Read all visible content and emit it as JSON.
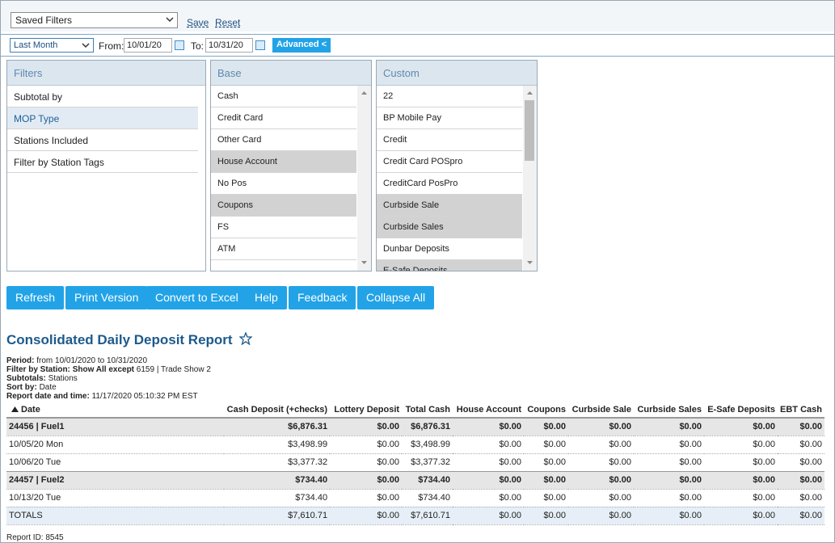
{
  "toolbar": {
    "saved_filters": "Saved Filters",
    "save": "Save",
    "reset": "Reset"
  },
  "date_range": {
    "period": "Last Month",
    "from_label": "From:",
    "from": "10/01/20",
    "to_label": "To:",
    "to": "10/31/20",
    "advanced": "Advanced <"
  },
  "panels": [
    {
      "title": "Filters",
      "items": [
        "Subtotal by",
        "MOP Type",
        "Stations Included",
        "Filter by Station Tags"
      ],
      "selected": [
        1
      ]
    },
    {
      "title": "Base",
      "items": [
        "Cash",
        "Credit Card",
        "Other Card",
        "House Account",
        "No Pos",
        "Coupons",
        "FS",
        "ATM"
      ],
      "selected": [
        3,
        5
      ]
    },
    {
      "title": "Custom",
      "items": [
        "22",
        "BP Mobile Pay",
        "Credit",
        "Credit Card POSpro",
        "CreditCard PosPro",
        "Curbside Sale",
        "Curbside Sales",
        "Dunbar Deposits",
        "E-Safe Deposits"
      ],
      "selected": [
        5,
        6,
        8
      ]
    }
  ],
  "buttons": [
    "Refresh",
    "Print Version",
    "Convert to Excel",
    "Help",
    "Feedback",
    "Collapse All"
  ],
  "report": {
    "title": "Consolidated Daily Deposit Report",
    "meta": [
      {
        "label": "Period:",
        "value": "from 10/01/2020 to 10/31/2020"
      },
      {
        "label": "Filter by Station:",
        "emphasis": "Show All except",
        "value": "6159 | Trade Show 2"
      },
      {
        "label": "Subtotals:",
        "value": "Stations"
      },
      {
        "label": "Sort by:",
        "value": "Date"
      },
      {
        "label": "Report date and time:",
        "value": "11/17/2020 05:10:32 PM EST"
      }
    ],
    "columns": [
      "Date",
      "Cash Deposit (+checks)",
      "Lottery Deposit",
      "Total Cash",
      "House Account",
      "Coupons",
      "Curbside Sale",
      "Curbside Sales",
      "E-Safe Deposits",
      "EBT Cash"
    ],
    "groups": [
      {
        "header": [
          "24456 | Fuel1",
          "$6,876.31",
          "$0.00",
          "$6,876.31",
          "$0.00",
          "$0.00",
          "$0.00",
          "$0.00",
          "$0.00",
          "$0.00"
        ],
        "rows": [
          [
            "10/05/20 Mon",
            "$3,498.99",
            "$0.00",
            "$3,498.99",
            "$0.00",
            "$0.00",
            "$0.00",
            "$0.00",
            "$0.00",
            "$0.00"
          ],
          [
            "10/06/20 Tue",
            "$3,377.32",
            "$0.00",
            "$3,377.32",
            "$0.00",
            "$0.00",
            "$0.00",
            "$0.00",
            "$0.00",
            "$0.00"
          ]
        ]
      },
      {
        "header": [
          "24457 | Fuel2",
          "$734.40",
          "$0.00",
          "$734.40",
          "$0.00",
          "$0.00",
          "$0.00",
          "$0.00",
          "$0.00",
          "$0.00"
        ],
        "rows": [
          [
            "10/13/20 Tue",
            "$734.40",
            "$0.00",
            "$734.40",
            "$0.00",
            "$0.00",
            "$0.00",
            "$0.00",
            "$0.00",
            "$0.00"
          ]
        ]
      }
    ],
    "totals": [
      "TOTALS",
      "$7,610.71",
      "$0.00",
      "$7,610.71",
      "$0.00",
      "$0.00",
      "$0.00",
      "$0.00",
      "$0.00",
      "$0.00"
    ],
    "report_id": "Report ID: 8545"
  }
}
